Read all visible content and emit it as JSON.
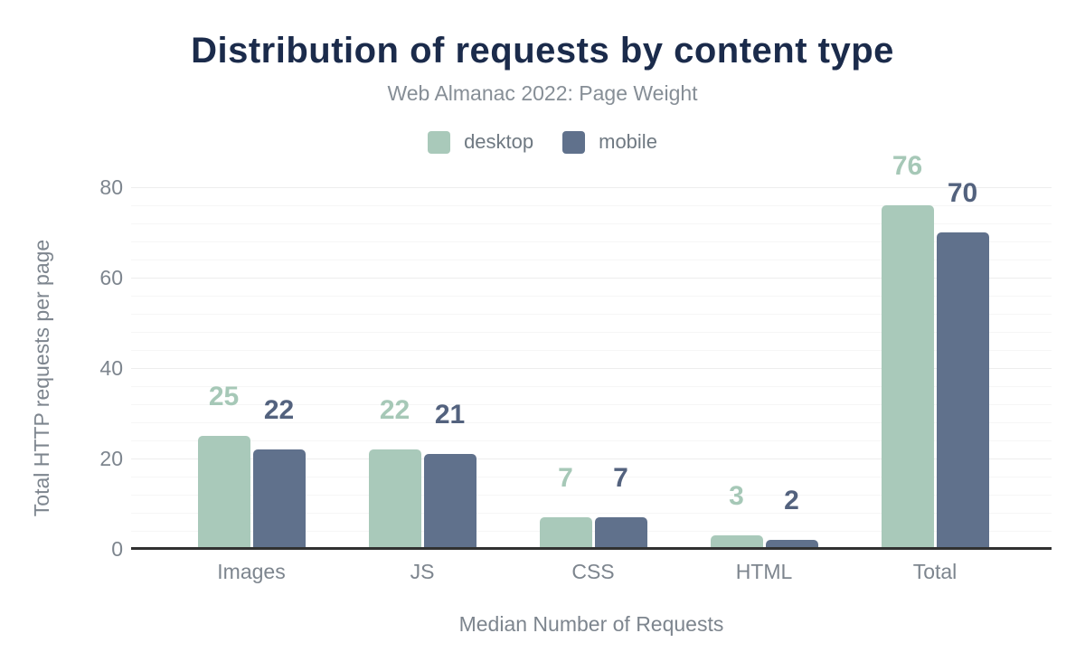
{
  "page": {
    "title": "Distribution of requests by content type",
    "subtitle": "Web Almanac 2022: Page Weight"
  },
  "colors": {
    "title_text": "#1b2b4b",
    "subtitle_text": "#868e96",
    "axis_text": "#7d858e",
    "axis_line": "#313131",
    "gridline_minor": "#f6f6f6",
    "gridline_major": "#ededed",
    "desktop_bar": "#a9c9ba",
    "mobile_bar": "#60718c",
    "desktop_label": "#a6c8b7",
    "mobile_label": "#53627e"
  },
  "chart_data": {
    "type": "bar",
    "title": "Distribution of requests by content type",
    "subtitle": "Web Almanac 2022: Page Weight",
    "categories": [
      "Images",
      "JS",
      "CSS",
      "HTML",
      "Total"
    ],
    "series": [
      {
        "name": "desktop",
        "color": "#a9c9ba",
        "label_color": "#a6c8b7",
        "values": [
          25,
          22,
          7,
          3,
          76
        ]
      },
      {
        "name": "mobile",
        "color": "#60718c",
        "label_color": "#53627e",
        "values": [
          22,
          21,
          7,
          2,
          70
        ]
      }
    ],
    "xlabel": "Median Number of Requests",
    "ylabel": "Total HTTP requests per page",
    "yticks": [
      0,
      20,
      40,
      60,
      80
    ],
    "ylim": [
      0,
      84
    ],
    "grid": "horizontal minor gridlines every 4 units, major every 20",
    "legend_position": "top-center"
  }
}
